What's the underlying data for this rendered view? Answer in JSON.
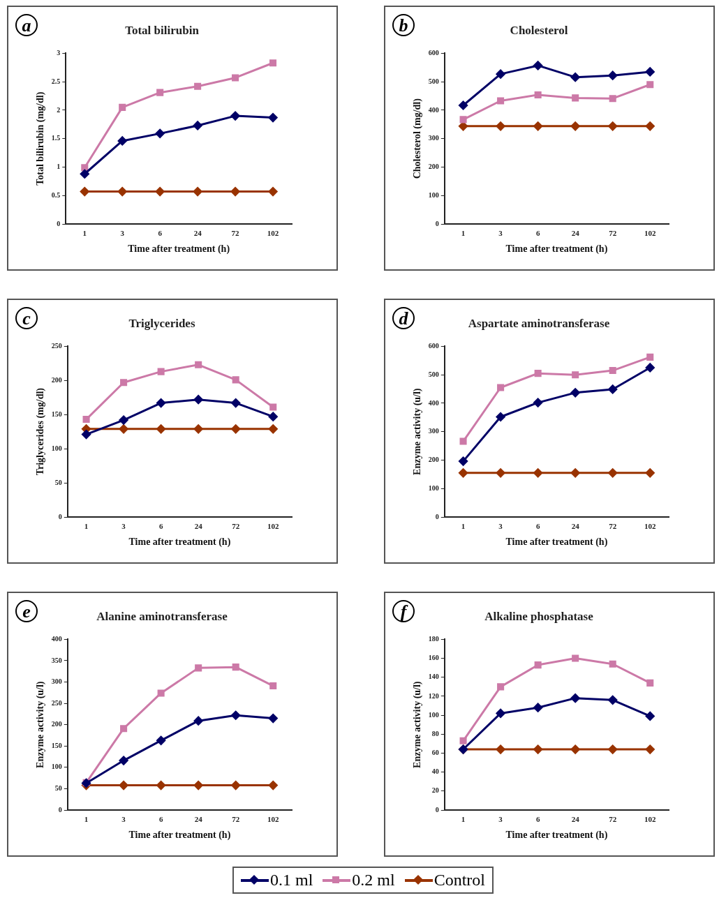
{
  "chart_data": [
    {
      "type": "line",
      "title": "Total bilirubin",
      "xlabel": "Time after treatment (h)",
      "ylabel": "Total bilirubin (mg/dl)",
      "annotations": [
        "a"
      ],
      "categories": [
        "1",
        "3",
        "6",
        "24",
        "72",
        "102"
      ],
      "ylim": [
        0,
        3
      ],
      "yticks": [
        0,
        0.5,
        1,
        1.5,
        2,
        2.5,
        3
      ],
      "series": [
        {
          "color": "#000066",
          "marker": "diamond",
          "values": [
            0.88,
            1.46,
            1.59,
            1.73,
            1.9,
            1.87
          ]
        },
        {
          "color": "#cc79a7",
          "marker": "square",
          "values": [
            0.99,
            2.05,
            2.31,
            2.42,
            2.57,
            2.83
          ]
        },
        {
          "color": "#993300",
          "marker": "diamond",
          "values": [
            0.57,
            0.57,
            0.57,
            0.57,
            0.57,
            0.57
          ]
        }
      ]
    },
    {
      "type": "line",
      "title": "Cholesterol",
      "xlabel": "Time after treatment (h)",
      "ylabel": "Cholesterol (mg/dl)",
      "annotations": [
        "b"
      ],
      "categories": [
        "1",
        "3",
        "6",
        "24",
        "72",
        "102"
      ],
      "ylim": [
        0,
        600
      ],
      "yticks": [
        0,
        100,
        200,
        300,
        400,
        500,
        600
      ],
      "series": [
        {
          "color": "#000066",
          "marker": "diamond",
          "values": [
            417,
            527,
            557,
            516,
            522,
            535
          ]
        },
        {
          "color": "#cc79a7",
          "marker": "square",
          "values": [
            367,
            433,
            454,
            443,
            441,
            490
          ]
        },
        {
          "color": "#993300",
          "marker": "diamond",
          "values": [
            344,
            344,
            344,
            344,
            344,
            344
          ]
        }
      ]
    },
    {
      "type": "line",
      "title": "Triglycerides",
      "xlabel": "Time after treatment (h)",
      "ylabel": "Triglycerides (mg/dl)",
      "annotations": [
        "c"
      ],
      "categories": [
        "1",
        "3",
        "6",
        "24",
        "72",
        "102"
      ],
      "ylim": [
        0,
        250
      ],
      "yticks": [
        0,
        50,
        100,
        150,
        200,
        250
      ],
      "series": [
        {
          "color": "#000066",
          "marker": "diamond",
          "values": [
            121,
            142,
            167,
            172,
            167,
            147
          ]
        },
        {
          "color": "#cc79a7",
          "marker": "square",
          "values": [
            143,
            197,
            213,
            223,
            201,
            161
          ]
        },
        {
          "color": "#993300",
          "marker": "diamond",
          "values": [
            129,
            129,
            129,
            129,
            129,
            129
          ]
        }
      ]
    },
    {
      "type": "line",
      "title": "Aspartate aminotransferase",
      "xlabel": "Time after treatment (h)",
      "ylabel": "Enzyme activity (u/l)",
      "annotations": [
        "d"
      ],
      "categories": [
        "1",
        "3",
        "6",
        "24",
        "72",
        "102"
      ],
      "ylim": [
        0,
        600
      ],
      "yticks": [
        0,
        100,
        200,
        300,
        400,
        500,
        600
      ],
      "series": [
        {
          "color": "#000066",
          "marker": "diamond",
          "values": [
            196,
            352,
            402,
            437,
            449,
            525
          ]
        },
        {
          "color": "#cc79a7",
          "marker": "square",
          "values": [
            266,
            455,
            505,
            500,
            515,
            562
          ]
        },
        {
          "color": "#993300",
          "marker": "diamond",
          "values": [
            155,
            155,
            155,
            155,
            155,
            155
          ]
        }
      ]
    },
    {
      "type": "line",
      "title": "Alanine aminotransferase",
      "xlabel": "Time after treatment (h)",
      "ylabel": "Enzyme activity (u/l)",
      "annotations": [
        "e"
      ],
      "categories": [
        "1",
        "3",
        "6",
        "24",
        "72",
        "102"
      ],
      "ylim": [
        0,
        400
      ],
      "yticks": [
        0,
        50,
        100,
        150,
        200,
        250,
        300,
        350,
        400
      ],
      "series": [
        {
          "color": "#000066",
          "marker": "diamond",
          "values": [
            63,
            116,
            163,
            209,
            222,
            215
          ]
        },
        {
          "color": "#cc79a7",
          "marker": "square",
          "values": [
            64,
            191,
            274,
            333,
            335,
            291
          ]
        },
        {
          "color": "#993300",
          "marker": "diamond",
          "values": [
            58,
            58,
            58,
            58,
            58,
            58
          ]
        }
      ]
    },
    {
      "type": "line",
      "title": "Alkaline phosphatase",
      "xlabel": "Time after treatment (h)",
      "ylabel": "Enzyme activity (u/l)",
      "annotations": [
        "f"
      ],
      "categories": [
        "1",
        "3",
        "6",
        "24",
        "72",
        "102"
      ],
      "ylim": [
        0,
        180
      ],
      "yticks": [
        0,
        20,
        40,
        60,
        80,
        100,
        120,
        140,
        160,
        180
      ],
      "legend": "bottom",
      "series": [
        {
          "name": "0.1 ml",
          "color": "#000066",
          "marker": "diamond",
          "values": [
            64,
            102,
            108,
            118,
            116,
            99
          ]
        },
        {
          "name": "0.2 ml",
          "color": "#cc79a7",
          "marker": "square",
          "values": [
            73,
            130,
            153,
            160,
            154,
            134
          ]
        },
        {
          "name": "Control",
          "color": "#993300",
          "marker": "diamond",
          "values": [
            64,
            64,
            64,
            64,
            64,
            64
          ]
        }
      ]
    }
  ]
}
